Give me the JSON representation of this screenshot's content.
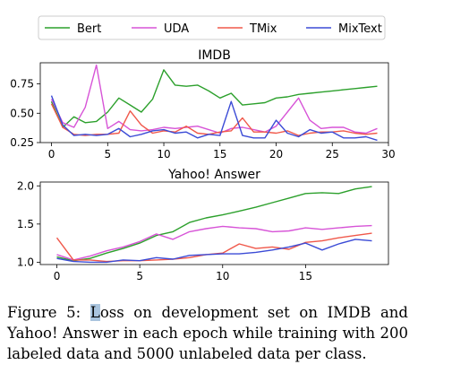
{
  "colors": {
    "Bert": "#2ca02c",
    "UDA": "#d754d7",
    "TMix": "#f0584a",
    "MixText": "#3b4bd6"
  },
  "legend": [
    "Bert",
    "UDA",
    "TMix",
    "MixText"
  ],
  "chart_data": [
    {
      "type": "line",
      "title": "IMDB",
      "xlabel": "",
      "ylabel": "",
      "xlim": [
        -1,
        30
      ],
      "ylim": [
        0.25,
        0.93
      ],
      "xticks": [
        0,
        5,
        10,
        15,
        20,
        25,
        30
      ],
      "yticks": [
        "0.25",
        "0.50",
        "0.75"
      ],
      "x": [
        0,
        1,
        2,
        3,
        4,
        5,
        6,
        7,
        8,
        9,
        10,
        11,
        12,
        13,
        14,
        15,
        16,
        17,
        18,
        19,
        20,
        21,
        22,
        23,
        24,
        25,
        26,
        27,
        28,
        29
      ],
      "series": [
        {
          "name": "Bert",
          "values": [
            0.6,
            0.38,
            0.47,
            0.42,
            0.43,
            0.51,
            0.63,
            0.57,
            0.51,
            0.62,
            0.87,
            0.74,
            0.73,
            0.74,
            0.69,
            0.63,
            0.67,
            0.57,
            0.58,
            0.59,
            0.63,
            0.64,
            0.66,
            0.67,
            0.68,
            0.69,
            0.7,
            0.71,
            0.72,
            0.73
          ]
        },
        {
          "name": "UDA",
          "values": [
            0.62,
            0.42,
            0.38,
            0.55,
            0.91,
            0.37,
            0.43,
            0.36,
            0.35,
            0.36,
            0.38,
            0.37,
            0.38,
            0.39,
            0.36,
            0.33,
            0.37,
            0.38,
            0.36,
            0.34,
            0.39,
            0.51,
            0.63,
            0.44,
            0.37,
            0.38,
            0.38,
            0.34,
            0.33,
            0.37
          ]
        },
        {
          "name": "TMix",
          "values": [
            0.58,
            0.38,
            0.32,
            0.31,
            0.32,
            0.32,
            0.33,
            0.52,
            0.4,
            0.33,
            0.35,
            0.34,
            0.39,
            0.33,
            0.32,
            0.34,
            0.35,
            0.46,
            0.34,
            0.34,
            0.33,
            0.35,
            0.31,
            0.33,
            0.34,
            0.34,
            0.35,
            0.33,
            0.32,
            0.33
          ]
        },
        {
          "name": "MixText",
          "values": [
            0.65,
            0.4,
            0.31,
            0.32,
            0.31,
            0.32,
            0.37,
            0.3,
            0.32,
            0.35,
            0.36,
            0.33,
            0.34,
            0.29,
            0.32,
            0.31,
            0.6,
            0.31,
            0.29,
            0.29,
            0.44,
            0.33,
            0.3,
            0.36,
            0.33,
            0.34,
            0.29,
            0.29,
            0.3,
            0.27
          ]
        }
      ]
    },
    {
      "type": "line",
      "title": "Yahoo! Answer",
      "xlabel": "",
      "ylabel": "",
      "xlim": [
        -1,
        20
      ],
      "ylim": [
        0.97,
        2.05
      ],
      "xticks": [
        0,
        5,
        10,
        15
      ],
      "yticks": [
        "1.0",
        "1.5",
        "2.0"
      ],
      "x": [
        0,
        1,
        2,
        3,
        4,
        5,
        6,
        7,
        8,
        9,
        10,
        11,
        12,
        13,
        14,
        15,
        16,
        17,
        18,
        19
      ],
      "series": [
        {
          "name": "Bert",
          "values": [
            1.07,
            1.02,
            1.05,
            1.12,
            1.18,
            1.25,
            1.35,
            1.4,
            1.52,
            1.58,
            1.62,
            1.67,
            1.72,
            1.78,
            1.84,
            1.9,
            1.91,
            1.9,
            1.96,
            1.99
          ]
        },
        {
          "name": "UDA",
          "values": [
            1.1,
            1.03,
            1.08,
            1.15,
            1.2,
            1.27,
            1.37,
            1.3,
            1.4,
            1.44,
            1.47,
            1.45,
            1.44,
            1.4,
            1.41,
            1.45,
            1.43,
            1.45,
            1.47,
            1.48
          ]
        },
        {
          "name": "TMix",
          "values": [
            1.32,
            1.03,
            1.03,
            1.01,
            1.02,
            1.02,
            1.03,
            1.04,
            1.06,
            1.1,
            1.12,
            1.24,
            1.18,
            1.2,
            1.17,
            1.26,
            1.28,
            1.32,
            1.35,
            1.38
          ]
        },
        {
          "name": "MixText",
          "values": [
            1.05,
            1.01,
            1.0,
            1.0,
            1.03,
            1.02,
            1.06,
            1.04,
            1.09,
            1.1,
            1.11,
            1.11,
            1.13,
            1.16,
            1.2,
            1.25,
            1.16,
            1.24,
            1.3,
            1.28
          ]
        }
      ]
    }
  ],
  "caption": {
    "pre": "Figure 5: ",
    "mark": "L",
    "post": "oss on development set on IMDB and Yahoo! Answer in each epoch while training with 200 labeled data and 5000 unlabeled data per class."
  }
}
